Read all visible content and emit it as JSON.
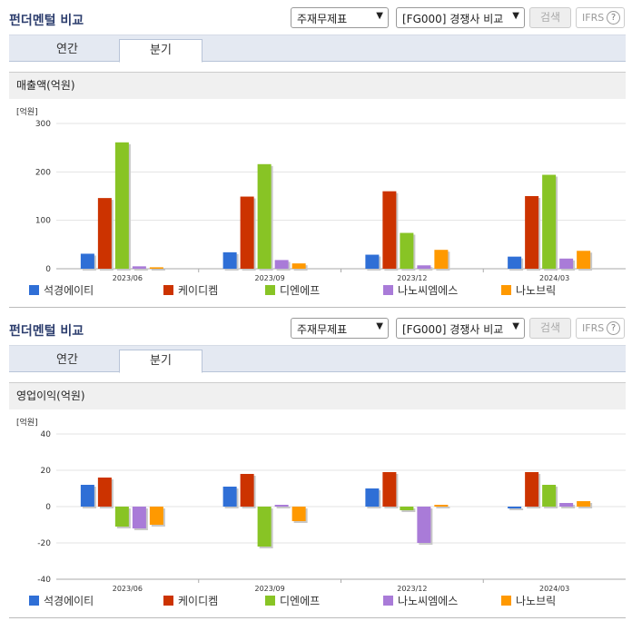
{
  "panels": [
    {
      "title": "펀더멘털 비교",
      "select_statement": "주재무제표",
      "select_compare": "[FG000] 경쟁사 비교",
      "search_label": "검색",
      "ifrs_label": "IFRS",
      "help_label": "?",
      "tabs": [
        {
          "label": "연간",
          "active": false
        },
        {
          "label": "분기",
          "active": true
        }
      ],
      "subtitle": "매출액(억원)",
      "chart_data": {
        "type": "bar",
        "unit_label": "[억원]",
        "categories": [
          "2023/06",
          "2023/09",
          "2023/12",
          "2024/03"
        ],
        "series": [
          {
            "name": "석경에이티",
            "color": "#2f6fd6",
            "values": [
              31,
              34,
              29,
              25
            ]
          },
          {
            "name": "케이디켐",
            "color": "#cc3300",
            "values": [
              146,
              149,
              160,
              150
            ]
          },
          {
            "name": "디엔에프",
            "color": "#88c425",
            "values": [
              261,
              216,
              74,
              194
            ]
          },
          {
            "name": "나노씨엠에스",
            "color": "#a97bd8",
            "values": [
              5,
              18,
              7,
              21
            ]
          },
          {
            "name": "나노브릭",
            "color": "#ff9900",
            "values": [
              3,
              11,
              39,
              37
            ]
          }
        ],
        "yticks": [
          0,
          100,
          200,
          300
        ],
        "ylim": [
          0,
          300
        ]
      }
    },
    {
      "title": "펀더멘털 비교",
      "select_statement": "주재무제표",
      "select_compare": "[FG000] 경쟁사 비교",
      "search_label": "검색",
      "ifrs_label": "IFRS",
      "help_label": "?",
      "tabs": [
        {
          "label": "연간",
          "active": false
        },
        {
          "label": "분기",
          "active": true
        }
      ],
      "subtitle": "영업이익(억원)",
      "chart_data": {
        "type": "bar",
        "unit_label": "[억원]",
        "categories": [
          "2023/06",
          "2023/09",
          "2023/12",
          "2024/03"
        ],
        "series": [
          {
            "name": "석경에이티",
            "color": "#2f6fd6",
            "values": [
              12,
              11,
              10,
              -1
            ]
          },
          {
            "name": "케이디켐",
            "color": "#cc3300",
            "values": [
              16,
              18,
              19,
              19
            ]
          },
          {
            "name": "디엔에프",
            "color": "#88c425",
            "values": [
              -11,
              -22,
              -2,
              12
            ]
          },
          {
            "name": "나노씨엠에스",
            "color": "#a97bd8",
            "values": [
              -12,
              1,
              -20,
              2
            ]
          },
          {
            "name": "나노브릭",
            "color": "#ff9900",
            "values": [
              -10,
              -8,
              1,
              3
            ]
          }
        ],
        "yticks": [
          -40,
          -20,
          0,
          20,
          40
        ],
        "ylim": [
          -40,
          40
        ]
      }
    }
  ]
}
